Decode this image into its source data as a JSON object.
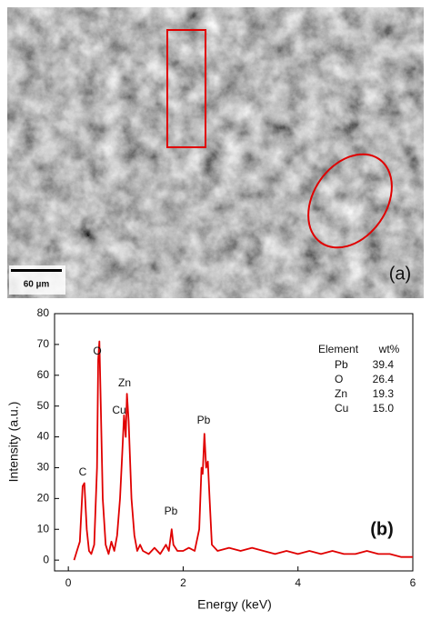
{
  "image": {
    "scale_bar": "60 µm",
    "panel_label": "(a)"
  },
  "chart_data": {
    "type": "line",
    "xlabel": "Energy (keV)",
    "ylabel": "Intensity (a.u.)",
    "panel_label": "(b)",
    "color": "#e00000",
    "xlim": [
      -0.24,
      6
    ],
    "xticks": [
      0,
      2,
      4,
      6
    ],
    "ylim": [
      -3.5,
      80
    ],
    "yticks": [
      0,
      10,
      20,
      30,
      40,
      50,
      60,
      70,
      80
    ],
    "x": [
      0.1,
      0.15,
      0.2,
      0.25,
      0.28,
      0.32,
      0.36,
      0.4,
      0.45,
      0.5,
      0.52,
      0.54,
      0.56,
      0.6,
      0.65,
      0.7,
      0.75,
      0.8,
      0.85,
      0.9,
      0.94,
      0.97,
      1.0,
      1.02,
      1.05,
      1.1,
      1.15,
      1.2,
      1.25,
      1.3,
      1.4,
      1.5,
      1.6,
      1.7,
      1.75,
      1.8,
      1.83,
      1.9,
      2.0,
      2.1,
      2.2,
      2.28,
      2.32,
      2.34,
      2.37,
      2.4,
      2.43,
      2.46,
      2.5,
      2.6,
      2.8,
      3.0,
      3.2,
      3.4,
      3.6,
      3.8,
      4.0,
      4.2,
      4.4,
      4.6,
      4.8,
      5.0,
      5.2,
      5.4,
      5.6,
      5.8,
      6.0
    ],
    "values": [
      0,
      3,
      6,
      24,
      25,
      10,
      3,
      2,
      5,
      30,
      65,
      71,
      55,
      20,
      5,
      2,
      6,
      3,
      8,
      20,
      35,
      47,
      40,
      54,
      45,
      20,
      8,
      3,
      5,
      3,
      2,
      4,
      2,
      5,
      3,
      10,
      5,
      3,
      3,
      4,
      3,
      10,
      30,
      28,
      41,
      30,
      32,
      20,
      5,
      3,
      4,
      3,
      4,
      3,
      2,
      3,
      2,
      3,
      2,
      3,
      2,
      2,
      3,
      2,
      2,
      1,
      1
    ],
    "annotations": [
      "C",
      "O",
      "Cu",
      "Zn",
      "Pb",
      "Pb"
    ],
    "table": {
      "header": [
        "Element",
        "wt%"
      ],
      "rows": [
        [
          "Pb",
          "39.4"
        ],
        [
          "O",
          "26.4"
        ],
        [
          "Zn",
          "19.3"
        ],
        [
          "Cu",
          "15.0"
        ]
      ]
    }
  }
}
